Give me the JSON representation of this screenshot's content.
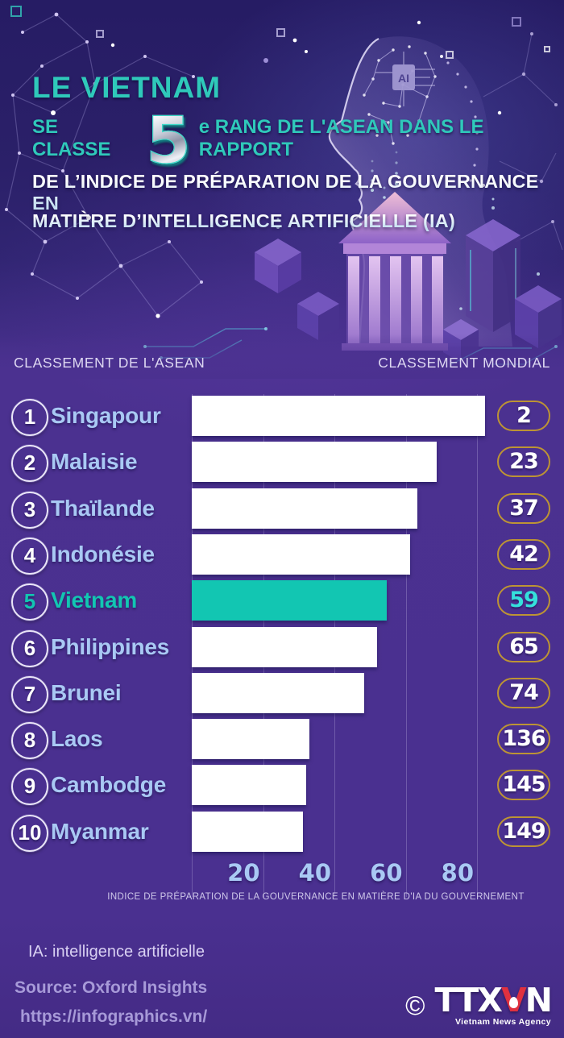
{
  "header": {
    "title": "LE VIETNAM",
    "line2_prefix": "SE CLASSE",
    "big_rank": "5",
    "line2_suffix": "e RANG DE L'ASEAN DANS LE RAPPORT",
    "line3": "DE L’INDICE DE PRÉPARATION DE LA GOUVERNANCE EN",
    "line4": "MATIÈRE D’INTELLIGENCE ARTIFICIELLE (IA)"
  },
  "section_labels": {
    "left": "CLASSEMENT DE L'ASEAN",
    "right": "CLASSEMENT MONDIAL"
  },
  "chart_data": {
    "type": "bar",
    "orientation": "horizontal",
    "title": "Classement de l'ASEAN — indice de préparation de la gouvernance en matière d'IA",
    "xlabel": "INDICE DE PRÉPARATION DE LA GOUVERNANCE EN MATIÈRE D'IA DU GOUVERNEMENT",
    "x_ticks": [
      20,
      40,
      60,
      80
    ],
    "xlim": [
      0,
      84
    ],
    "grid": true,
    "rows": [
      {
        "asean_rank": 1,
        "country": "Singapour",
        "score": 82.3,
        "world_rank": 2,
        "highlight": false
      },
      {
        "asean_rank": 2,
        "country": "Malaisie",
        "score": 68.7,
        "world_rank": 23,
        "highlight": false
      },
      {
        "asean_rank": 3,
        "country": "Thaïlande",
        "score": 63.2,
        "world_rank": 37,
        "highlight": false
      },
      {
        "asean_rank": 4,
        "country": "Indonésie",
        "score": 61.2,
        "world_rank": 42,
        "highlight": false
      },
      {
        "asean_rank": 5,
        "country": "Vietnam",
        "score": 54.7,
        "world_rank": 59,
        "highlight": true
      },
      {
        "asean_rank": 6,
        "country": "Philippines",
        "score": 52.0,
        "world_rank": 65,
        "highlight": false
      },
      {
        "asean_rank": 7,
        "country": "Brunei",
        "score": 48.3,
        "world_rank": 74,
        "highlight": false
      },
      {
        "asean_rank": 8,
        "country": "Laos",
        "score": 33.0,
        "world_rank": 136,
        "highlight": false
      },
      {
        "asean_rank": 9,
        "country": "Cambodge",
        "score": 32.1,
        "world_rank": 145,
        "highlight": false
      },
      {
        "asean_rank": 10,
        "country": "Myanmar",
        "score": 31.2,
        "world_rank": 149,
        "highlight": false
      }
    ]
  },
  "footer": {
    "note": "IA: intelligence artificielle",
    "source": "Source: Oxford Insights",
    "url": "https://infographics.vn/",
    "logo": {
      "copyright": "©",
      "part1": "TTX",
      "part2": "V",
      "part3": "N",
      "subtitle": "Vietnam News Agency"
    }
  },
  "icons": {
    "ai_chip_label": "AI"
  },
  "colors": {
    "accent_teal": "#2fc9ba",
    "bright_cyan": "#35e0dc",
    "country_blue": "#a9c9f4",
    "gold_border": "#bd9434",
    "bar_white": "#ffffff",
    "bar_teal": "#12c6b2",
    "bg_purple": "#4b3190",
    "bg_dark_navy": "#2a1f68",
    "logo_red": "#e0313f"
  }
}
